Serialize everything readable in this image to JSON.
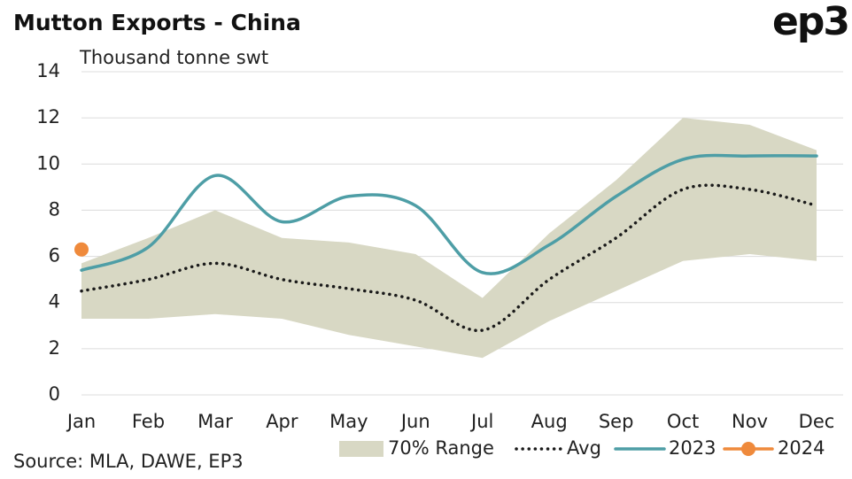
{
  "chart_data": {
    "type": "line",
    "title": "Mutton Exports - China",
    "logo": "ep3",
    "y_label": "Thousand tonne swt",
    "source": "Source: MLA, DAWE, EP3",
    "categories": [
      "Jan",
      "Feb",
      "Mar",
      "Apr",
      "May",
      "Jun",
      "Jul",
      "Aug",
      "Sep",
      "Oct",
      "Nov",
      "Dec"
    ],
    "range": {
      "name": "70% Range",
      "color": "#d8d8c4",
      "high": [
        5.7,
        6.8,
        8.0,
        6.8,
        6.6,
        6.1,
        4.2,
        7.0,
        9.3,
        12.0,
        11.7,
        10.6
      ],
      "low": [
        3.3,
        3.3,
        3.5,
        3.3,
        2.6,
        2.1,
        1.6,
        3.2,
        4.5,
        5.8,
        6.1,
        5.8
      ]
    },
    "series": [
      {
        "name": "Avg",
        "color": "#1a1a1a",
        "style": "dotted",
        "values": [
          4.5,
          5.0,
          5.7,
          5.0,
          4.6,
          4.1,
          2.8,
          5.0,
          6.8,
          8.9,
          8.9,
          8.2
        ]
      },
      {
        "name": "2023",
        "color": "#4e9ea6",
        "style": "solid",
        "values": [
          5.4,
          6.4,
          9.5,
          7.5,
          8.6,
          8.2,
          5.3,
          6.5,
          8.6,
          10.2,
          10.35,
          10.35
        ]
      },
      {
        "name": "2024",
        "color": "#ef8a3c",
        "style": "marker",
        "values": [
          6.3,
          null,
          null,
          null,
          null,
          null,
          null,
          null,
          null,
          null,
          null,
          null
        ]
      }
    ],
    "ylim": [
      0,
      14
    ],
    "yticks": [
      0,
      2,
      4,
      6,
      8,
      10,
      12,
      14
    ],
    "grid": true
  }
}
